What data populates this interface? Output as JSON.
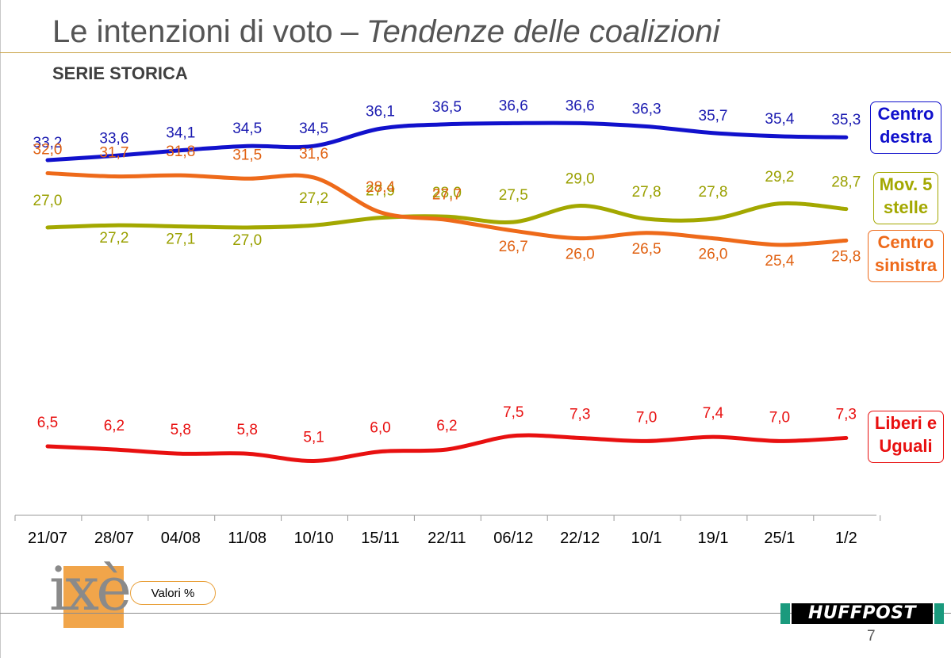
{
  "title": {
    "main": "Le intenzioni di voto",
    "separator": "–",
    "italic": "Tendenze delle coalizioni"
  },
  "subtitle": "SERIE STORICA",
  "legend": [
    {
      "line1": "Centro",
      "line2": "destra",
      "color": "#1111cc"
    },
    {
      "line1": "Mov. 5",
      "line2": "stelle",
      "color": "#a3a800"
    },
    {
      "line1": "Centro",
      "line2": "sinistra",
      "color": "#ee6a1a"
    },
    {
      "line1": "Liberi e",
      "line2": "Uguali",
      "color": "#e81010"
    }
  ],
  "valori_label": "Valori %",
  "logo_text": "ixè",
  "brand": "HUFFPOST",
  "page_number": "7",
  "chart_data": {
    "type": "line",
    "categories": [
      "21/07",
      "28/07",
      "04/08",
      "11/08",
      "10/10",
      "15/11",
      "22/11",
      "06/12",
      "22/12",
      "10/1",
      "19/1",
      "25/1",
      "1/2"
    ],
    "series": [
      {
        "name": "Centro destra",
        "color": "#1111cc",
        "label_color": "#1a1ab0",
        "values": [
          33.2,
          33.6,
          34.1,
          34.5,
          34.5,
          36.1,
          36.5,
          36.6,
          36.6,
          36.3,
          35.7,
          35.4,
          35.3
        ],
        "labels": [
          "33,2",
          "33,6",
          "34,1",
          "34,5",
          "34,5",
          "36,1",
          "36,5",
          "36,6",
          "36,6",
          "36,3",
          "35,7",
          "35,4",
          "35,3"
        ]
      },
      {
        "name": "Mov. 5 stelle",
        "color": "#a3a800",
        "label_color": "#9aa000",
        "values": [
          27.0,
          27.2,
          27.1,
          27.0,
          27.2,
          27.9,
          28.0,
          27.5,
          29.0,
          27.8,
          27.8,
          29.2,
          28.7
        ],
        "labels": [
          "27,0",
          "27,2",
          "27,1",
          "27,0",
          "27,2",
          "27,9",
          "28,0",
          "27,5",
          "29,0",
          "27,8",
          "27,8",
          "29,2",
          "28,7"
        ]
      },
      {
        "name": "Centro sinistra",
        "color": "#ee6a1a",
        "label_color": "#e06010",
        "values": [
          32.0,
          31.7,
          31.8,
          31.5,
          31.6,
          28.4,
          27.7,
          26.7,
          26.0,
          26.5,
          26.0,
          25.4,
          25.8
        ],
        "labels": [
          "32,0",
          "31,7",
          "31,8",
          "31,5",
          "31,6",
          "28,4",
          "27,7",
          "26,7",
          "26,0",
          "26,5",
          "26,0",
          "25,4",
          "25,8"
        ]
      },
      {
        "name": "Liberi e Uguali",
        "color": "#e81010",
        "label_color": "#e81010",
        "values": [
          6.5,
          6.2,
          5.8,
          5.8,
          5.1,
          6.0,
          6.2,
          7.5,
          7.3,
          7.0,
          7.4,
          7.0,
          7.3
        ],
        "labels": [
          "6,5",
          "6,2",
          "5,8",
          "5,8",
          "5,1",
          "6,0",
          "6,2",
          "7,5",
          "7,3",
          "7,0",
          "7,4",
          "7,0",
          "7,3"
        ]
      }
    ],
    "legend_position": "right",
    "grid": false
  }
}
